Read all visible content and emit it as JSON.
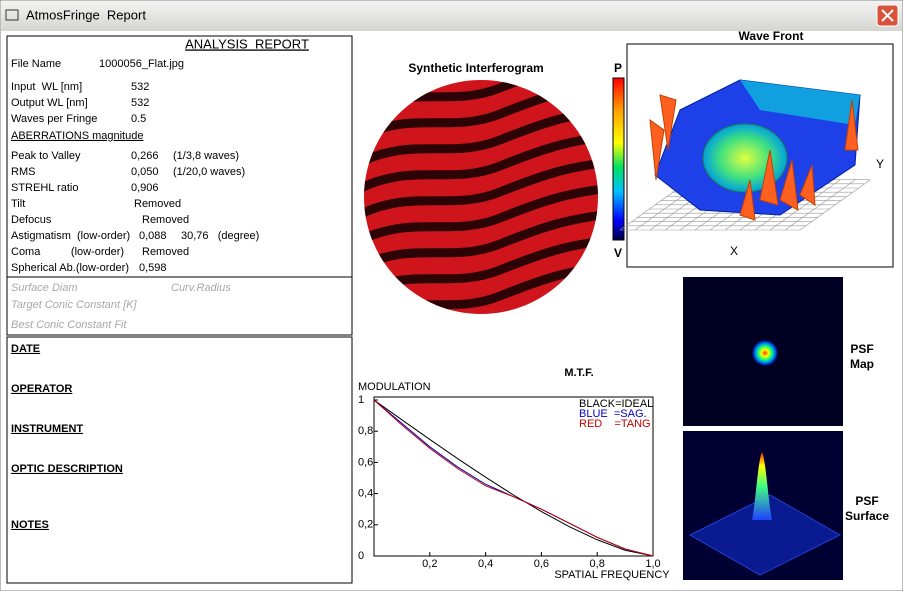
{
  "window_title": "AtmosFringe  Report",
  "report": {
    "title": "ANALYSIS  REPORT",
    "file": {
      "label": "File Name",
      "value": "1000056_Flat.jpg"
    },
    "fields": [
      {
        "label": "Input  WL [nm]",
        "value": "532"
      },
      {
        "label": "Output WL [nm]",
        "value": "532"
      },
      {
        "label": "Waves per Fringe",
        "value": "0.5"
      }
    ],
    "aberrations_heading": "ABERRATIONS magnitude",
    "aberrations": [
      {
        "label": "Peak to Valley",
        "value": "0,266",
        "note": "(1/3,8 waves)"
      },
      {
        "label": "RMS",
        "value": "0,050",
        "note": "(1/20,0 waves)"
      },
      {
        "label": "STREHL ratio",
        "value": "0,906"
      },
      {
        "label": "Tilt",
        "value": "Removed"
      },
      {
        "label": "Defocus",
        "value": "Removed"
      },
      {
        "label": "Astigmatism  (low-order)",
        "value": "0,088",
        "note": "30,76   (degree)"
      },
      {
        "label": "Coma          (low-order)",
        "value": "Removed"
      },
      {
        "label": "Spherical Ab.(low-order)",
        "value": "0,598"
      }
    ],
    "disabled_fields": [
      "Surface Diam",
      "Curv.Radius",
      "Target Conic Constant [K]",
      "Best Conic Constant Fit"
    ],
    "sections": [
      "DATE",
      "OPERATOR",
      "INSTRUMENT",
      "OPTIC DESCRIPTION",
      "NOTES"
    ]
  },
  "interferogram": {
    "title": "Synthetic Interferogram",
    "scale_top": "P",
    "scale_bottom": "V"
  },
  "wavefront": {
    "title": "Wave Front",
    "x_label": "X",
    "y_label": "Y"
  },
  "psf_map_label": "PSF\nMap",
  "psf_surface_label": "PSF\nSurface",
  "chart_data": {
    "type": "line",
    "title": "M.T.F.",
    "y_label": "MODULATION",
    "x_label": "SPATIAL FREQUENCY",
    "x": [
      0,
      0.1,
      0.2,
      0.3,
      0.4,
      0.5,
      0.6,
      0.7,
      0.8,
      0.9,
      1.0
    ],
    "series": [
      {
        "name": "BLACK=IDEAL",
        "color": "#000000",
        "values": [
          1,
          0.873,
          0.747,
          0.624,
          0.505,
          0.391,
          0.285,
          0.188,
          0.104,
          0.037,
          0
        ]
      },
      {
        "name": "BLUE  =SAG.",
        "color": "#0000c0",
        "values": [
          1,
          0.85,
          0.7,
          0.57,
          0.46,
          0.38,
          0.3,
          0.21,
          0.12,
          0.045,
          0
        ]
      },
      {
        "name": "RED    =TANG",
        "color": "#c00000",
        "values": [
          1,
          0.84,
          0.69,
          0.56,
          0.45,
          0.38,
          0.3,
          0.21,
          0.12,
          0.045,
          0
        ]
      }
    ],
    "xlim": [
      0,
      1
    ],
    "ylim": [
      0,
      1
    ],
    "xticks": [
      {
        "value": 0.2,
        "label": "0,2"
      },
      {
        "value": 0.4,
        "label": "0,4"
      },
      {
        "value": 0.6,
        "label": "0,6"
      },
      {
        "value": 0.8,
        "label": "0,8"
      },
      {
        "value": 1.0,
        "label": "1,0"
      }
    ],
    "yticks": [
      0,
      {
        "value": 0.2,
        "label": "0,2"
      },
      {
        "value": 0.4,
        "label": "0,4"
      },
      {
        "value": 0.6,
        "label": "0,6"
      },
      {
        "value": 0.8,
        "label": "0,8"
      },
      1
    ]
  }
}
